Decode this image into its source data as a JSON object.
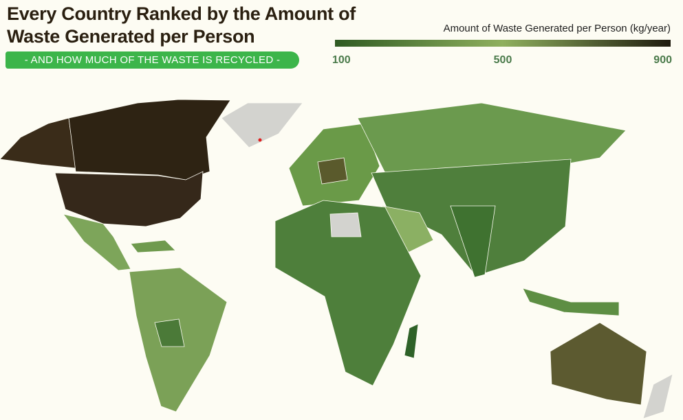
{
  "header": {
    "title": "Every Country Ranked by the Amount of Waste Generated per Person",
    "subtitle": "- AND HOW MUCH OF THE WASTE IS RECYCLED -"
  },
  "legend": {
    "title": "Amount of Waste Generated per Person (kg/year)",
    "range": [
      100,
      900
    ],
    "ticks": [
      100,
      500,
      900
    ],
    "colors": [
      "#2f5a22",
      "#8fb05e",
      "#1e1a0e"
    ]
  }
}
